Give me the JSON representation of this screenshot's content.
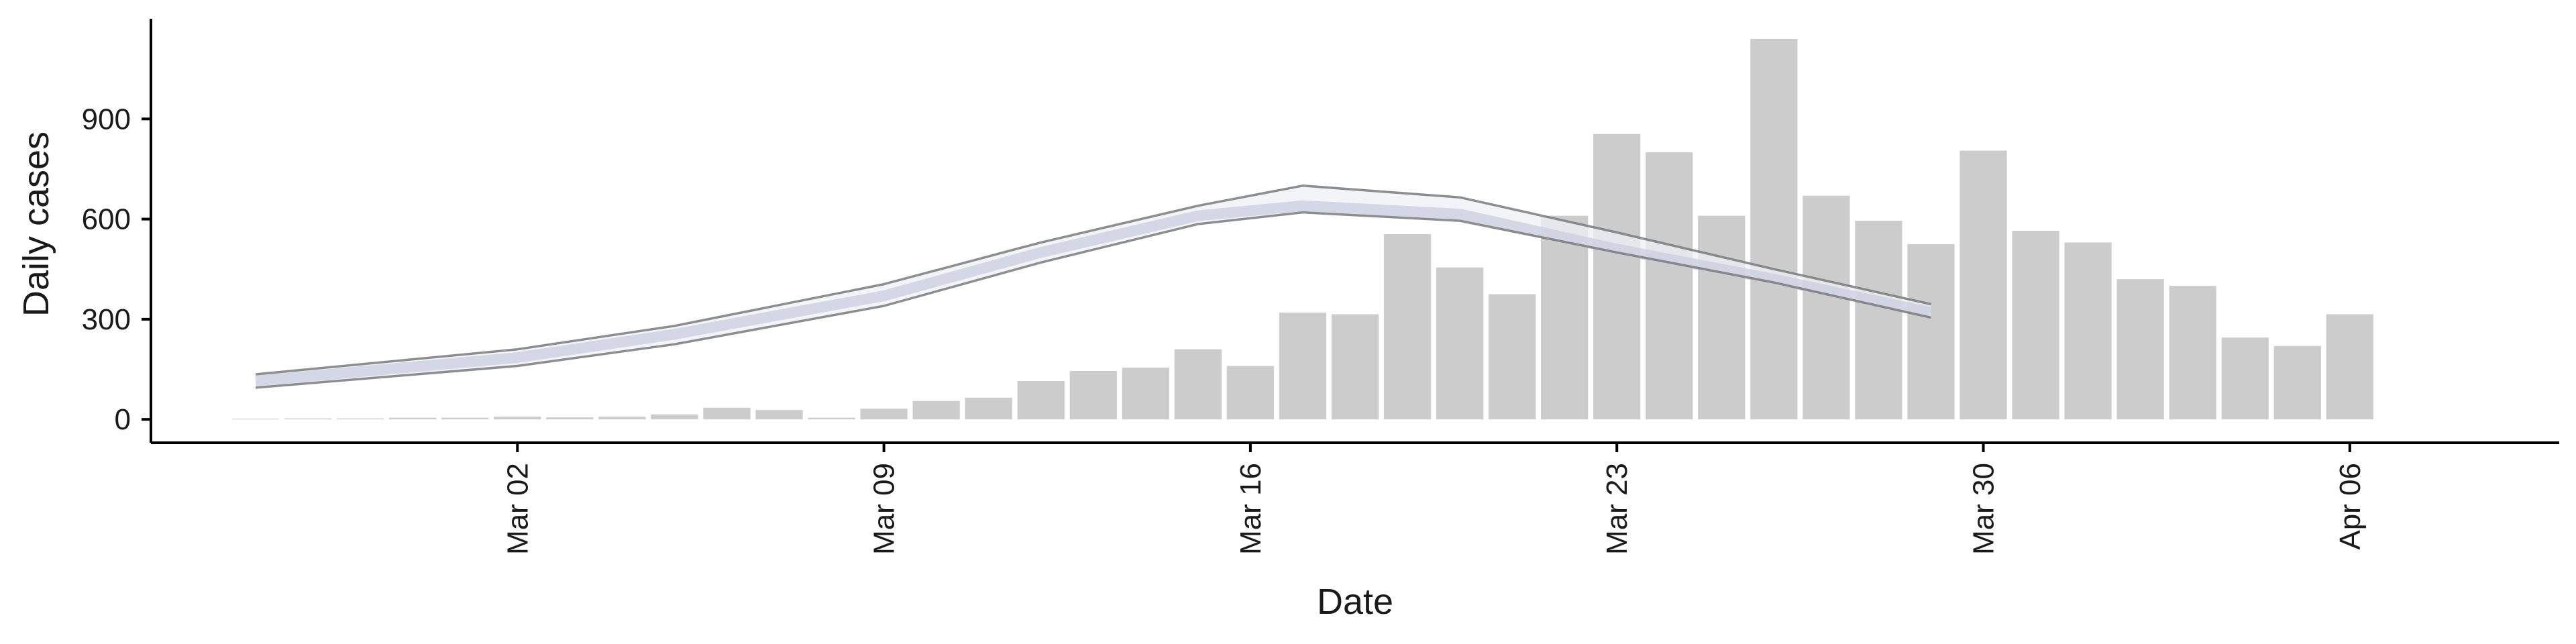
{
  "chart_data": {
    "type": "bar",
    "title": "",
    "xlabel": "Date",
    "ylabel": "Daily cases",
    "ylim": [
      -70,
      1200
    ],
    "grid": false,
    "legend": "none",
    "x_tick_labels": [
      "Mar 02",
      "Mar 09",
      "Mar 16",
      "Mar 23",
      "Mar 30",
      "Apr 06"
    ],
    "y_ticks": [
      0,
      300,
      600,
      900
    ],
    "colors": {
      "bars": "#cccccc",
      "band_fill": "#eef0f6",
      "band_edge": "#7a7a7a",
      "center_line": "#c9cfe0",
      "axis": "#000000"
    },
    "bars": {
      "dates": [
        "2020-02-26",
        "2020-02-27",
        "2020-02-28",
        "2020-02-29",
        "2020-03-01",
        "2020-03-02",
        "2020-03-03",
        "2020-03-04",
        "2020-03-05",
        "2020-03-06",
        "2020-03-07",
        "2020-03-08",
        "2020-03-09",
        "2020-03-10",
        "2020-03-11",
        "2020-03-12",
        "2020-03-13",
        "2020-03-14",
        "2020-03-15",
        "2020-03-16",
        "2020-03-17",
        "2020-03-18",
        "2020-03-19",
        "2020-03-20",
        "2020-03-21",
        "2020-03-22",
        "2020-03-23",
        "2020-03-24",
        "2020-03-25",
        "2020-03-26",
        "2020-03-27",
        "2020-03-28",
        "2020-03-29",
        "2020-03-30",
        "2020-03-31",
        "2020-04-01",
        "2020-04-02",
        "2020-04-03",
        "2020-04-04",
        "2020-04-05",
        "2020-04-06",
        "2020-04-07"
      ],
      "values": [
        2,
        3,
        3,
        5,
        5,
        8,
        6,
        8,
        15,
        35,
        28,
        5,
        32,
        55,
        65,
        115,
        145,
        155,
        210,
        160,
        320,
        315,
        555,
        455,
        375,
        610,
        855,
        800,
        610,
        1140,
        670,
        595,
        525,
        805,
        565,
        530,
        420,
        400,
        245,
        220,
        315,
        0
      ]
    },
    "smoothed": {
      "dates": [
        "2020-02-26",
        "2020-03-02",
        "2020-03-05",
        "2020-03-09",
        "2020-03-12",
        "2020-03-15",
        "2020-03-17",
        "2020-03-20",
        "2020-03-23",
        "2020-03-26",
        "2020-03-29"
      ],
      "lower": [
        95,
        160,
        225,
        340,
        470,
        585,
        620,
        595,
        500,
        410,
        305
      ],
      "center": [
        115,
        185,
        255,
        370,
        500,
        610,
        640,
        615,
        510,
        420,
        320
      ],
      "upper": [
        135,
        210,
        280,
        405,
        530,
        640,
        700,
        665,
        560,
        450,
        345
      ]
    }
  }
}
